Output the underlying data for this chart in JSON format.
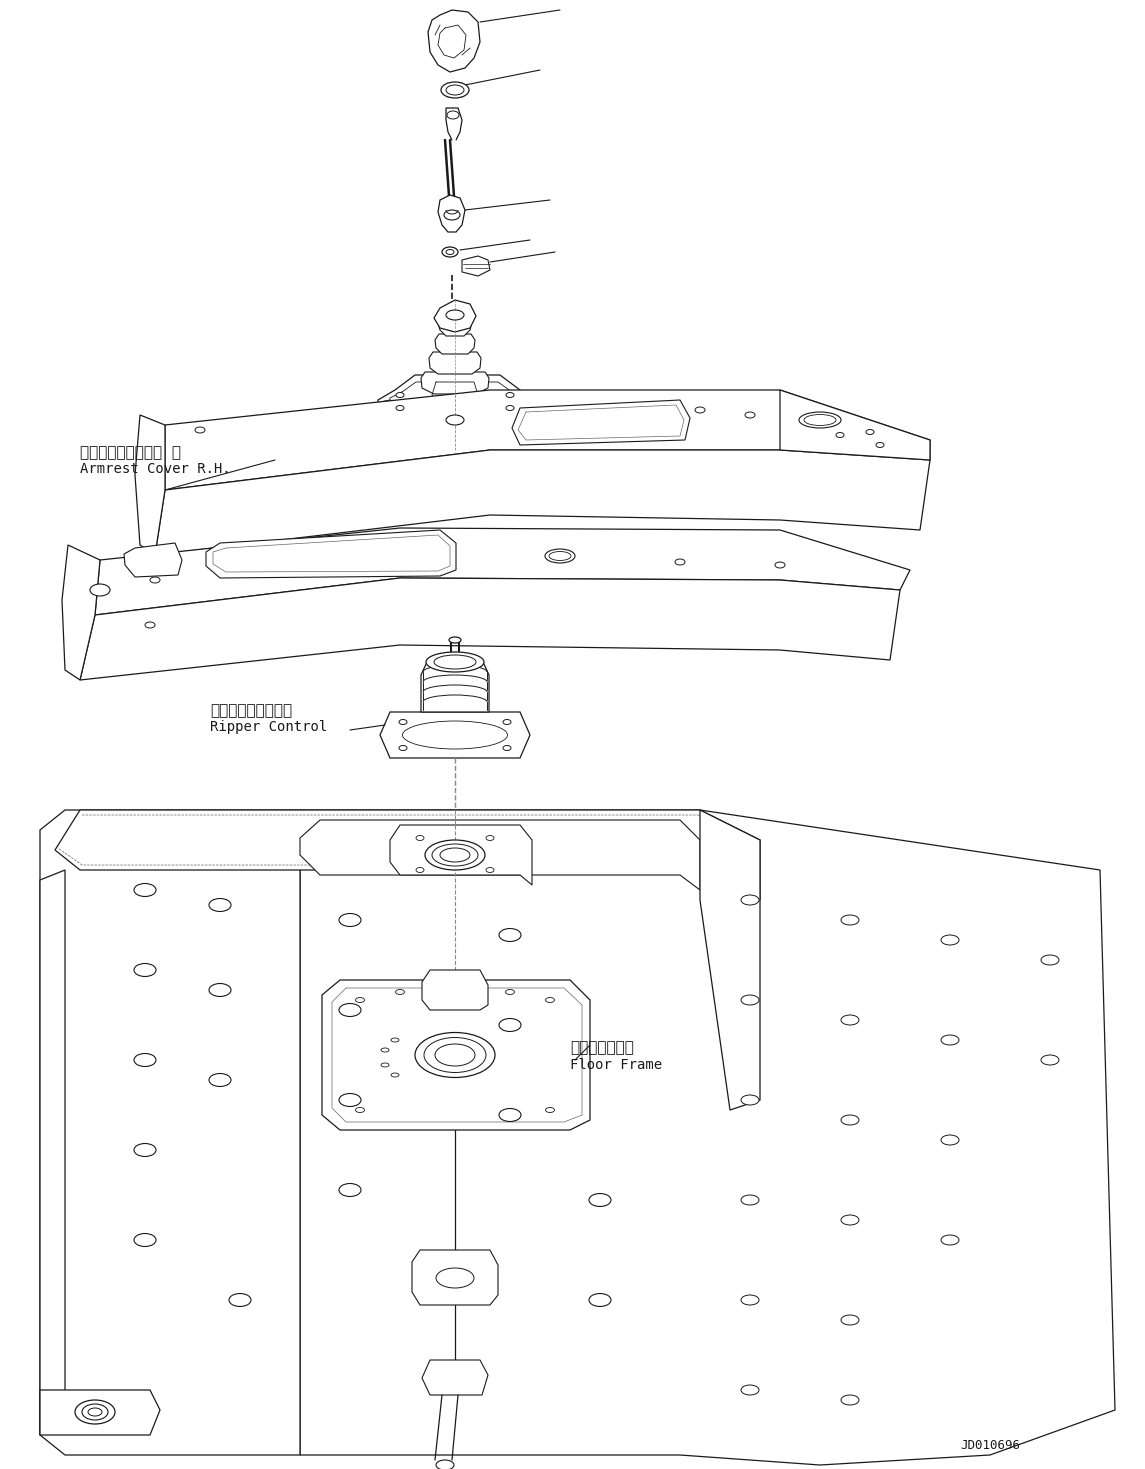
{
  "bg_color": "#ffffff",
  "line_color": "#1a1a1a",
  "fig_width": 11.45,
  "fig_height": 14.69,
  "dpi": 100,
  "label_armrest_ja": "アームレストカバー  右",
  "label_armrest_en": "Armrest Cover R.H.",
  "label_ripper_ja": "リッパコントロール",
  "label_ripper_en": "Ripper Control",
  "label_floor_ja": "フロアフレーム",
  "label_floor_en": "Floor Frame",
  "part_number": "JD010696",
  "font_size_ja": 11,
  "font_size_en": 10,
  "font_size_part": 9
}
